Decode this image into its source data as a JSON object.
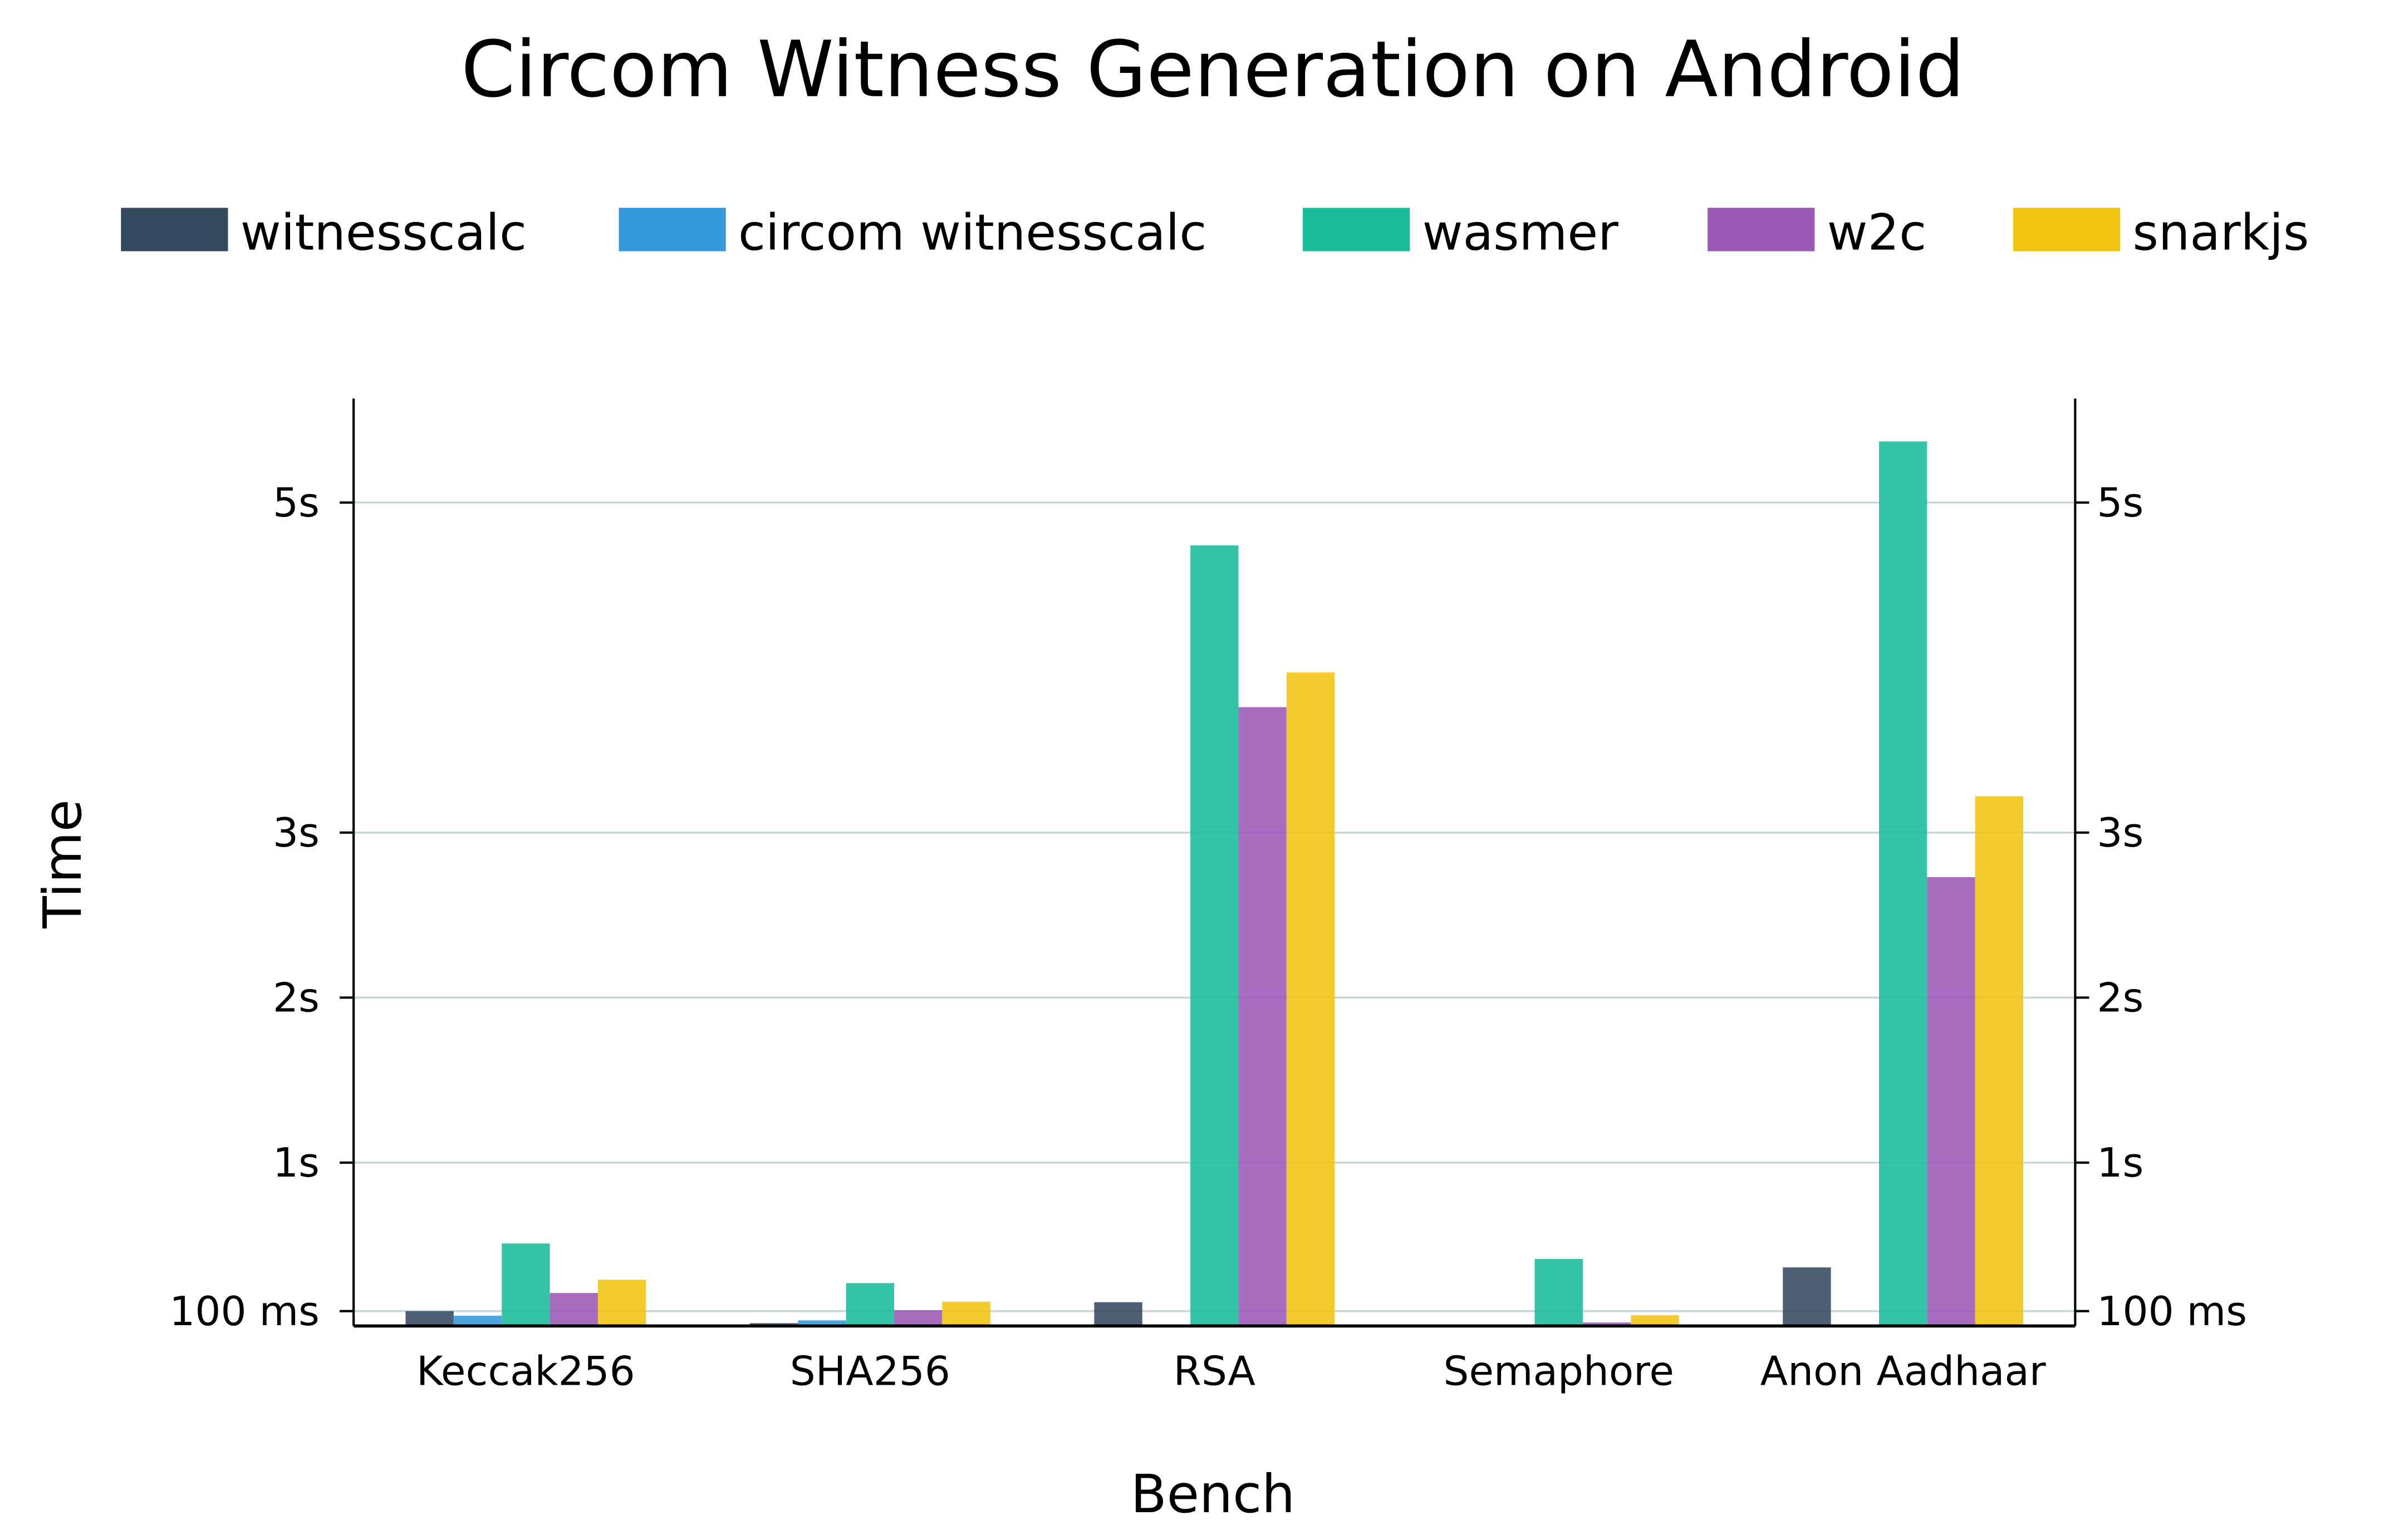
{
  "chart_data": {
    "type": "bar",
    "title": "Circom Witness Generation on Android",
    "xlabel": "Bench",
    "ylabel": "Time",
    "categories": [
      "Keccak256",
      "SHA256",
      "RSA",
      "Semaphore",
      "Anon Aadhaar"
    ],
    "unit": "s",
    "ylim": [
      0.01,
      5.63
    ],
    "y_ticks": [
      {
        "value": 0.1,
        "label": "100 ms"
      },
      {
        "value": 1,
        "label": "1s"
      },
      {
        "value": 2,
        "label": "2s"
      },
      {
        "value": 3,
        "label": "3s"
      },
      {
        "value": 5,
        "label": "5s"
      }
    ],
    "grid": true,
    "mirror_y_axis_right": true,
    "legend_placement": "top",
    "series": [
      {
        "name": "witnesscalc",
        "color": "#34495e",
        "values": [
          0.1,
          0.027,
          0.154,
          null,
          0.365
        ]
      },
      {
        "name": "circom witnesscalc",
        "color": "#3498db",
        "values": [
          0.072,
          0.044,
          null,
          null,
          null
        ]
      },
      {
        "name": "wasmer",
        "color": "#1abc9c",
        "values": [
          0.51,
          0.27,
          4.74,
          0.416,
          5.37
        ]
      },
      {
        "name": "w2c",
        "color": "#9b59b6",
        "values": [
          0.21,
          0.106,
          3.76,
          0.031,
          2.73
        ]
      },
      {
        "name": "snarkjs",
        "color": "#f1c40f",
        "values": [
          0.29,
          0.157,
          3.97,
          0.075,
          3.22
        ]
      }
    ]
  }
}
